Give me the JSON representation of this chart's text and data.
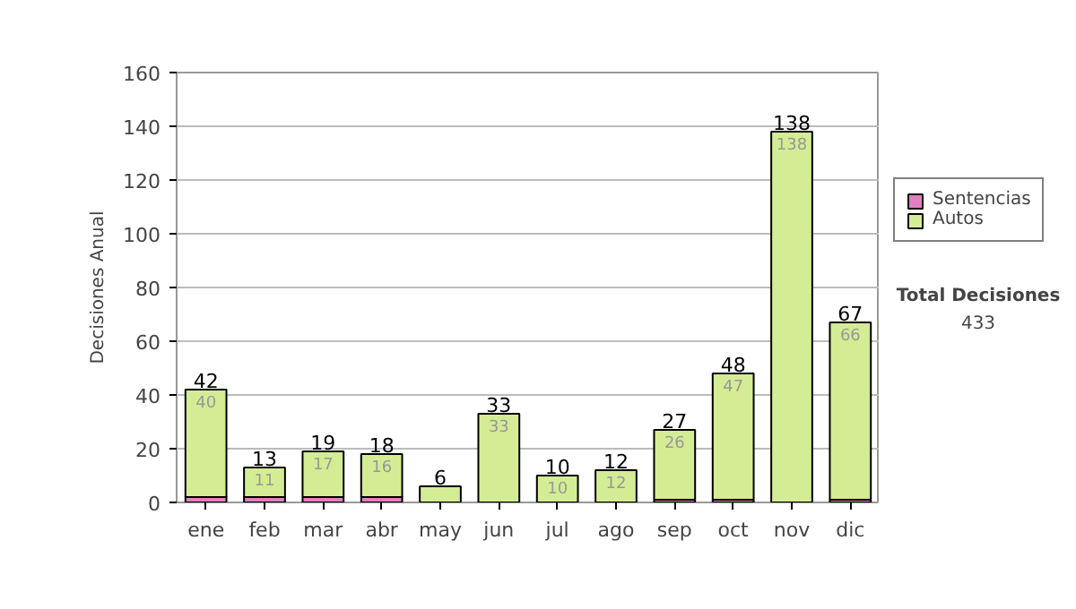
{
  "chart_data": {
    "type": "bar",
    "stacked": true,
    "ylabel": "Decisiones Anual",
    "categories": [
      "ene",
      "feb",
      "mar",
      "abr",
      "may",
      "jun",
      "jul",
      "ago",
      "sep",
      "oct",
      "nov",
      "dic"
    ],
    "series": [
      {
        "name": "Sentencias",
        "color": "#e080c0",
        "values": [
          2,
          2,
          2,
          2,
          0,
          0,
          0,
          0,
          1,
          1,
          0,
          1
        ]
      },
      {
        "name": "Autos",
        "color": "#d4ec94",
        "values": [
          40,
          11,
          17,
          16,
          6,
          33,
          10,
          12,
          26,
          47,
          138,
          66
        ],
        "value_labels": [
          "40",
          "11",
          "17",
          "16",
          null,
          "33",
          "10",
          "12",
          "26",
          "47",
          "138",
          "66"
        ]
      }
    ],
    "totals": [
      "42",
      "13",
      "19",
      "18",
      "6",
      "33",
      "10",
      "12",
      "27",
      "48",
      "138",
      "67"
    ],
    "ylim": [
      0,
      160
    ],
    "yticks": [
      0,
      20,
      40,
      60,
      80,
      100,
      120,
      140,
      160
    ],
    "grid": "y",
    "legend": "right",
    "annotations": [
      "Total Decisiones",
      "433"
    ]
  }
}
